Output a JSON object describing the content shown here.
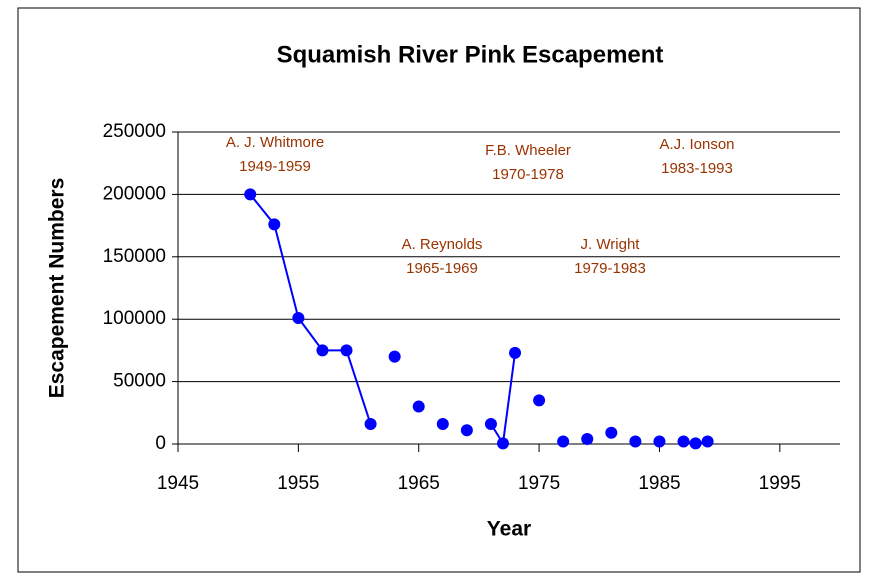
{
  "chart_data": {
    "type": "line",
    "title": "Squamish River Pink Escapement",
    "x_label": "Year",
    "y_label": "Escapement Numbers",
    "x": [
      1951,
      1953,
      1955,
      1957,
      1959,
      1961,
      1962,
      1963,
      1964,
      1965,
      1966,
      1967,
      1968,
      1969,
      1970,
      1971,
      1972,
      1973,
      1974,
      1975,
      1976,
      1977,
      1978,
      1979,
      1980,
      1981,
      1982,
      1983,
      1984,
      1985,
      1986,
      1987,
      1988,
      1989
    ],
    "series": [
      {
        "name": "Escapement",
        "color": "#0000ff",
        "values": [
          200000,
          176000,
          101000,
          75000,
          75000,
          16000,
          null,
          70000,
          null,
          30000,
          null,
          16000,
          null,
          11000,
          null,
          16000,
          500,
          73000,
          null,
          35000,
          null,
          2000,
          null,
          4000,
          null,
          9000,
          null,
          2000,
          null,
          2000,
          null,
          2000,
          500,
          2000
        ]
      }
    ],
    "annotations": [
      {
        "name": "A. J. Whitmore",
        "period": "1949-1959"
      },
      {
        "name": "A. Reynolds",
        "period": "1965-1969"
      },
      {
        "name": "F.B. Wheeler",
        "period": "1970-1978"
      },
      {
        "name": "J. Wright",
        "period": "1979-1983"
      },
      {
        "name": "A.J. Ionson",
        "period": "1983-1993"
      }
    ],
    "xlim": [
      1945,
      2000
    ],
    "xticks": [
      1945,
      1955,
      1965,
      1975,
      1985,
      1995
    ],
    "ylim": [
      0,
      250000
    ],
    "yticks": [
      0,
      50000,
      100000,
      150000,
      200000,
      250000
    ],
    "grid": true,
    "annotation_color": "#993300"
  }
}
